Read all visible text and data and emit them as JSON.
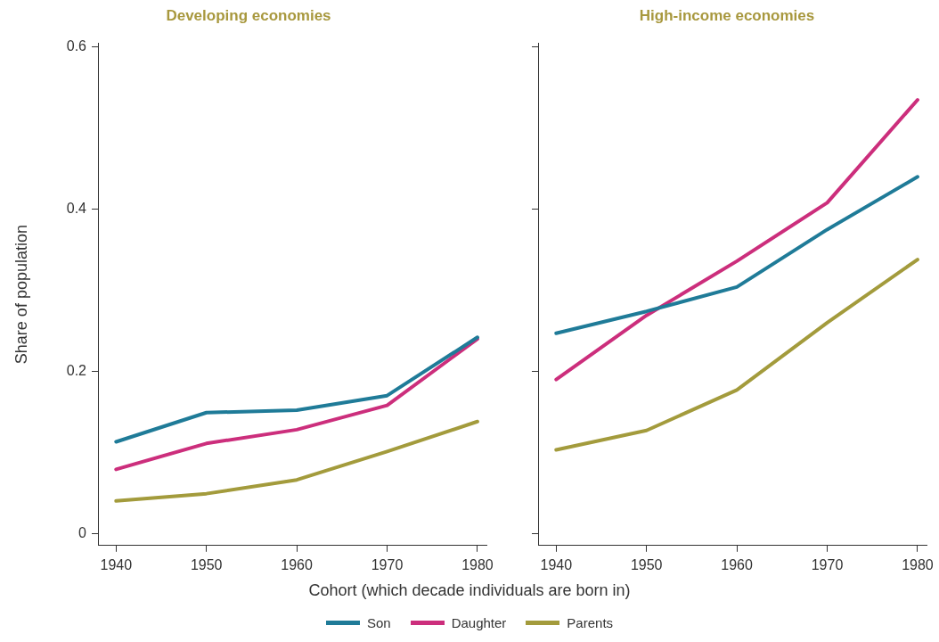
{
  "chart_data": [
    {
      "type": "line",
      "title": "Developing economies",
      "xlabel": "Cohort (which decade individuals are born in)",
      "ylabel": "Share of population",
      "x": [
        1940,
        1950,
        1960,
        1970,
        1980
      ],
      "xlim": [
        1938,
        1981
      ],
      "xticks": [
        1940,
        1950,
        1960,
        1970,
        1980
      ],
      "ylim": [
        -0.015,
        0.605
      ],
      "yticks": [
        {
          "value": 0,
          "label": "0"
        },
        0.2,
        0.4,
        0.6
      ],
      "grid": false,
      "legend": "bottom",
      "marker": "none",
      "line_style": "solid",
      "series": [
        {
          "name": "Son",
          "color": "#1f7b98",
          "values": [
            0.113,
            0.149,
            0.152,
            0.17,
            0.242
          ]
        },
        {
          "name": "Daughter",
          "color": "#cc2e7c",
          "values": [
            0.079,
            0.111,
            0.128,
            0.158,
            0.24
          ]
        },
        {
          "name": "Parents",
          "color": "#a39b3c",
          "values": [
            0.04,
            0.049,
            0.066,
            0.101,
            0.138
          ]
        }
      ]
    },
    {
      "type": "line",
      "title": "High-income economies",
      "x": [
        1940,
        1950,
        1960,
        1970,
        1980
      ],
      "xlim": [
        1938,
        1981
      ],
      "xticks": [
        1940,
        1950,
        1960,
        1970,
        1980
      ],
      "ylim": [
        -0.015,
        0.605
      ],
      "yticks": [
        0,
        0.2,
        0.4,
        0.6
      ],
      "tick_labels": "x",
      "grid": false,
      "marker": "none",
      "line_style": "solid",
      "series": [
        {
          "color": "#1f7b98",
          "values": [
            0.247,
            0.274,
            0.304,
            0.375,
            0.44
          ]
        },
        {
          "color": "#cc2e7c",
          "values": [
            0.19,
            0.269,
            0.336,
            0.408,
            0.535
          ]
        },
        {
          "color": "#a39b3c",
          "values": [
            0.103,
            0.127,
            0.177,
            0.26,
            0.338
          ]
        }
      ]
    }
  ]
}
